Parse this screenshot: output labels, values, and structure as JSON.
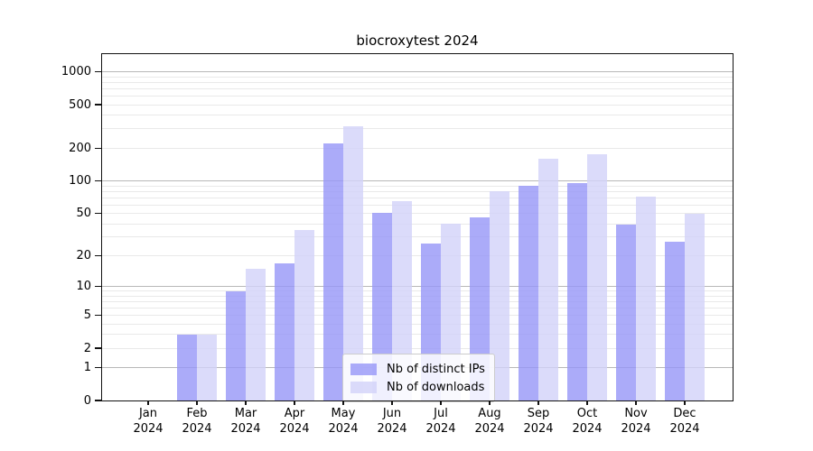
{
  "chart_data": {
    "type": "bar",
    "title": "biocroxytest 2024",
    "categories": [
      "Jan 2024",
      "Feb 2024",
      "Mar 2024",
      "Apr 2024",
      "May 2024",
      "Jun 2024",
      "Jul 2024",
      "Aug 2024",
      "Sep 2024",
      "Oct 2024",
      "Nov 2024",
      "Dec 2024"
    ],
    "series": [
      {
        "name": "Nb of distinct IPs",
        "color": "rgba(150,150,247,0.8)",
        "values": [
          0,
          3,
          9,
          17,
          220,
          51,
          26,
          46,
          90,
          95,
          39,
          27
        ]
      },
      {
        "name": "Nb of downloads",
        "color": "rgba(210,210,249,0.8)",
        "values": [
          0,
          3,
          15,
          35,
          320,
          65,
          40,
          80,
          160,
          175,
          72,
          50
        ]
      }
    ],
    "xlabel": "",
    "ylabel": "",
    "yscale": "log1p",
    "y_ticks": [
      0,
      1,
      2,
      5,
      10,
      20,
      50,
      100,
      200,
      500,
      1000
    ],
    "ylim": [
      0,
      1450
    ],
    "grid": {
      "major_color": "#b8b8b8",
      "minor_color": "#e9e9e9",
      "major_at": [
        1,
        10,
        100,
        1000
      ]
    },
    "legend": {
      "position": "lower center"
    }
  }
}
